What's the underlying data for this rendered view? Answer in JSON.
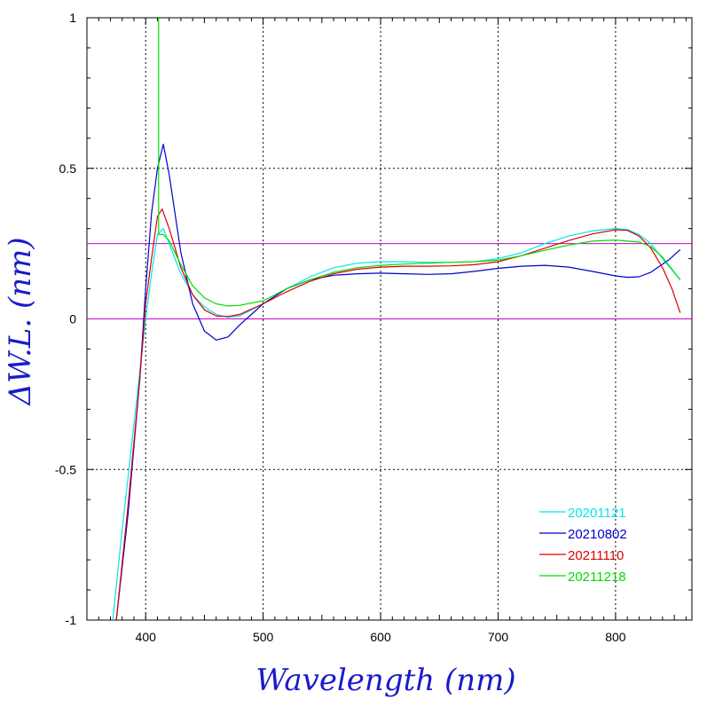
{
  "chart_data": {
    "type": "line",
    "title": "",
    "xlabel": "Wavelength (nm)",
    "ylabel": "ΔW.L. (nm)",
    "xlim": [
      350,
      865
    ],
    "ylim": [
      -1,
      1
    ],
    "x_ticks": [
      400,
      500,
      600,
      700,
      800
    ],
    "x_tick_labels": [
      "400",
      "500",
      "600",
      "700",
      "800"
    ],
    "y_ticks": [
      -1,
      -0.5,
      0,
      0.5,
      1
    ],
    "y_tick_labels": [
      "-1",
      "-0.5",
      "0",
      "0.5",
      "1"
    ],
    "grid": true,
    "reference_lines": [
      {
        "y": 0.25,
        "color": "#cc00cc"
      },
      {
        "y": 0,
        "color": "#cc00cc"
      }
    ],
    "legend_position": "bottom-right",
    "series": [
      {
        "name": "20201121",
        "color": "#00e5ee",
        "points": [
          [
            372,
            -1.0
          ],
          [
            380,
            -0.7
          ],
          [
            390,
            -0.35
          ],
          [
            400,
            0.0
          ],
          [
            405,
            0.15
          ],
          [
            410,
            0.28
          ],
          [
            415,
            0.3
          ],
          [
            420,
            0.25
          ],
          [
            430,
            0.15
          ],
          [
            440,
            0.08
          ],
          [
            450,
            0.04
          ],
          [
            460,
            0.015
          ],
          [
            470,
            0.005
          ],
          [
            480,
            0.01
          ],
          [
            500,
            0.05
          ],
          [
            520,
            0.1
          ],
          [
            540,
            0.14
          ],
          [
            560,
            0.17
          ],
          [
            580,
            0.185
          ],
          [
            600,
            0.19
          ],
          [
            620,
            0.19
          ],
          [
            640,
            0.188
          ],
          [
            660,
            0.188
          ],
          [
            680,
            0.19
          ],
          [
            700,
            0.2
          ],
          [
            720,
            0.22
          ],
          [
            740,
            0.25
          ],
          [
            760,
            0.275
          ],
          [
            780,
            0.292
          ],
          [
            800,
            0.3
          ],
          [
            810,
            0.297
          ],
          [
            820,
            0.28
          ],
          [
            830,
            0.25
          ],
          [
            840,
            0.2
          ],
          [
            855,
            0.13
          ]
        ]
      },
      {
        "name": "20210802",
        "color": "#0000cc",
        "points": [
          [
            375,
            -1.0
          ],
          [
            385,
            -0.65
          ],
          [
            395,
            -0.2
          ],
          [
            400,
            0.1
          ],
          [
            405,
            0.35
          ],
          [
            410,
            0.5
          ],
          [
            415,
            0.58
          ],
          [
            420,
            0.48
          ],
          [
            430,
            0.22
          ],
          [
            440,
            0.05
          ],
          [
            450,
            -0.04
          ],
          [
            460,
            -0.07
          ],
          [
            470,
            -0.06
          ],
          [
            480,
            -0.02
          ],
          [
            500,
            0.05
          ],
          [
            520,
            0.1
          ],
          [
            540,
            0.13
          ],
          [
            560,
            0.145
          ],
          [
            580,
            0.15
          ],
          [
            600,
            0.152
          ],
          [
            620,
            0.15
          ],
          [
            640,
            0.148
          ],
          [
            660,
            0.15
          ],
          [
            680,
            0.158
          ],
          [
            700,
            0.168
          ],
          [
            720,
            0.175
          ],
          [
            740,
            0.178
          ],
          [
            760,
            0.172
          ],
          [
            780,
            0.158
          ],
          [
            800,
            0.143
          ],
          [
            810,
            0.138
          ],
          [
            820,
            0.14
          ],
          [
            830,
            0.155
          ],
          [
            845,
            0.195
          ],
          [
            855,
            0.23
          ]
        ]
      },
      {
        "name": "20211110",
        "color": "#dd0000",
        "points": [
          [
            375,
            -1.0
          ],
          [
            385,
            -0.62
          ],
          [
            395,
            -0.2
          ],
          [
            400,
            0.05
          ],
          [
            405,
            0.2
          ],
          [
            410,
            0.34
          ],
          [
            414,
            0.365
          ],
          [
            420,
            0.3
          ],
          [
            430,
            0.17
          ],
          [
            440,
            0.08
          ],
          [
            450,
            0.03
          ],
          [
            460,
            0.01
          ],
          [
            470,
            0.008
          ],
          [
            480,
            0.015
          ],
          [
            500,
            0.05
          ],
          [
            520,
            0.09
          ],
          [
            540,
            0.125
          ],
          [
            560,
            0.15
          ],
          [
            580,
            0.165
          ],
          [
            600,
            0.172
          ],
          [
            620,
            0.175
          ],
          [
            640,
            0.175
          ],
          [
            660,
            0.176
          ],
          [
            680,
            0.18
          ],
          [
            700,
            0.19
          ],
          [
            720,
            0.21
          ],
          [
            740,
            0.235
          ],
          [
            760,
            0.26
          ],
          [
            780,
            0.282
          ],
          [
            800,
            0.296
          ],
          [
            810,
            0.294
          ],
          [
            820,
            0.275
          ],
          [
            830,
            0.235
          ],
          [
            840,
            0.17
          ],
          [
            848,
            0.1
          ],
          [
            855,
            0.02
          ]
        ]
      },
      {
        "name": "20211218",
        "color": "#00dd00",
        "points": [
          [
            411,
            1.0
          ],
          [
            411,
            0.28
          ],
          [
            415,
            0.28
          ],
          [
            420,
            0.26
          ],
          [
            430,
            0.18
          ],
          [
            440,
            0.11
          ],
          [
            450,
            0.07
          ],
          [
            460,
            0.05
          ],
          [
            470,
            0.043
          ],
          [
            480,
            0.045
          ],
          [
            500,
            0.06
          ],
          [
            520,
            0.1
          ],
          [
            540,
            0.13
          ],
          [
            560,
            0.155
          ],
          [
            580,
            0.17
          ],
          [
            600,
            0.178
          ],
          [
            620,
            0.182
          ],
          [
            640,
            0.185
          ],
          [
            660,
            0.188
          ],
          [
            680,
            0.19
          ],
          [
            700,
            0.195
          ],
          [
            720,
            0.21
          ],
          [
            740,
            0.228
          ],
          [
            760,
            0.245
          ],
          [
            780,
            0.258
          ],
          [
            800,
            0.262
          ],
          [
            820,
            0.255
          ],
          [
            830,
            0.24
          ],
          [
            840,
            0.205
          ],
          [
            855,
            0.13
          ]
        ]
      }
    ]
  }
}
